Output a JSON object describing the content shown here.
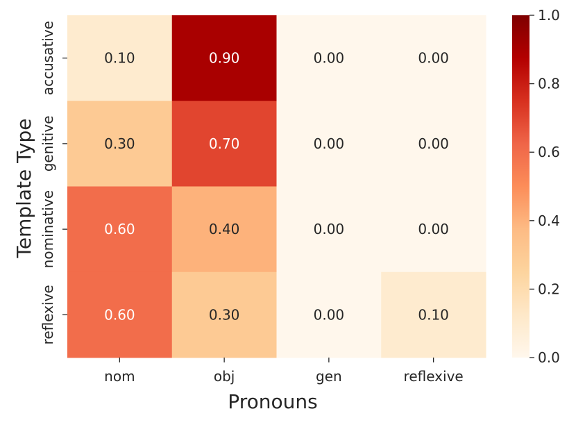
{
  "chart_data": {
    "type": "heatmap",
    "title": "",
    "xlabel": "Pronouns",
    "ylabel": "Template Type",
    "x_categories": [
      "nom",
      "obj",
      "gen",
      "reflexive"
    ],
    "y_categories": [
      "accusative",
      "genitive",
      "nominative",
      "reflexive"
    ],
    "values": [
      [
        0.1,
        0.9,
        0.0,
        0.0
      ],
      [
        0.3,
        0.7,
        0.0,
        0.0
      ],
      [
        0.6,
        0.4,
        0.0,
        0.0
      ],
      [
        0.6,
        0.3,
        0.0,
        0.1
      ]
    ],
    "value_format": "0.00",
    "colormap": "OrRd",
    "color_range": [
      0.0,
      1.0
    ],
    "colorbar_ticks": [
      "0.0",
      "0.2",
      "0.4",
      "0.6",
      "0.8",
      "1.0"
    ],
    "colorbar_stops": [
      "#fff7ec",
      "#fee8c8",
      "#fdd49e",
      "#fdbb84",
      "#fc8d59",
      "#ef6548",
      "#d7301f",
      "#b30000",
      "#7f0000"
    ],
    "annotation_colors": {
      "light": "#ffffff",
      "dark": "#262626"
    }
  }
}
